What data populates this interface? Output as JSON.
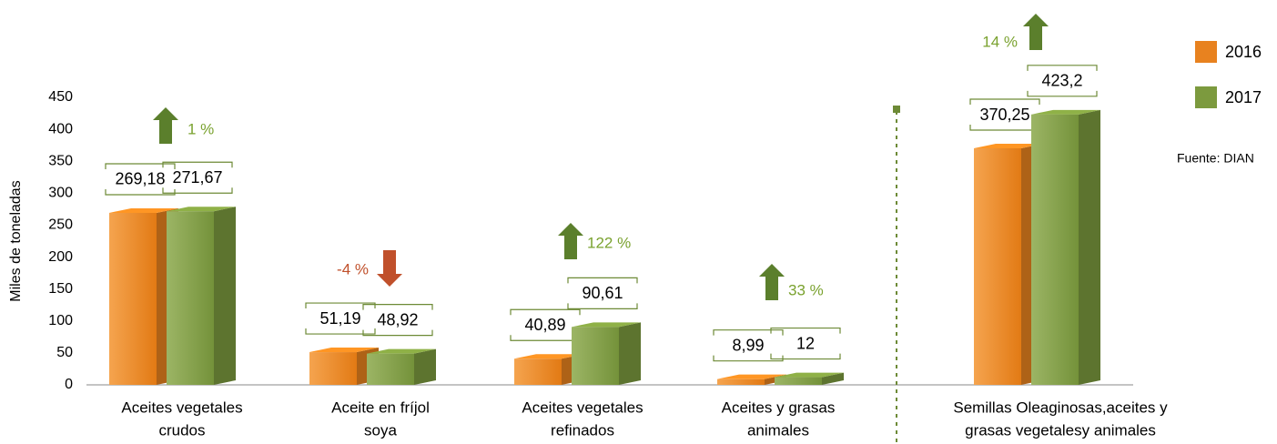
{
  "chart_data": {
    "type": "bar3d",
    "y_axis_label": "Miles de toneladas",
    "categories": [
      [
        "Aceites vegetales",
        "crudos"
      ],
      [
        "Aceite en fríjol",
        "soya"
      ],
      [
        "Aceites vegetales",
        "refinados"
      ],
      [
        "Aceites y grasas",
        "animales"
      ],
      [
        "Semillas Oleaginosas,aceites y",
        "grasas vegetalesy animales"
      ]
    ],
    "series": [
      {
        "name": "2016",
        "color": "#e8821f",
        "values": [
          269.18,
          51.19,
          40.89,
          8.99,
          370.25
        ],
        "value_labels": [
          "269,18",
          "51,19",
          "40,89",
          "8,99",
          "370,25"
        ]
      },
      {
        "name": "2017",
        "color": "#7c9a3e",
        "values": [
          271.67,
          48.92,
          90.61,
          12,
          423.2
        ],
        "value_labels": [
          "271,67",
          "48,92",
          "90,61",
          "12",
          "423,2"
        ]
      }
    ],
    "annotations": [
      {
        "text": "1 %",
        "direction": "up"
      },
      {
        "text": "-4 %",
        "direction": "down"
      },
      {
        "text": "122 %",
        "direction": "up"
      },
      {
        "text": "33 %",
        "direction": "up"
      },
      {
        "text": "14 %",
        "direction": "up"
      }
    ],
    "ylim": [
      0,
      450
    ],
    "yticks": [
      0,
      50,
      100,
      150,
      200,
      250,
      300,
      350,
      400,
      450
    ],
    "source": "Fuente: DIAN",
    "legend": "right"
  }
}
